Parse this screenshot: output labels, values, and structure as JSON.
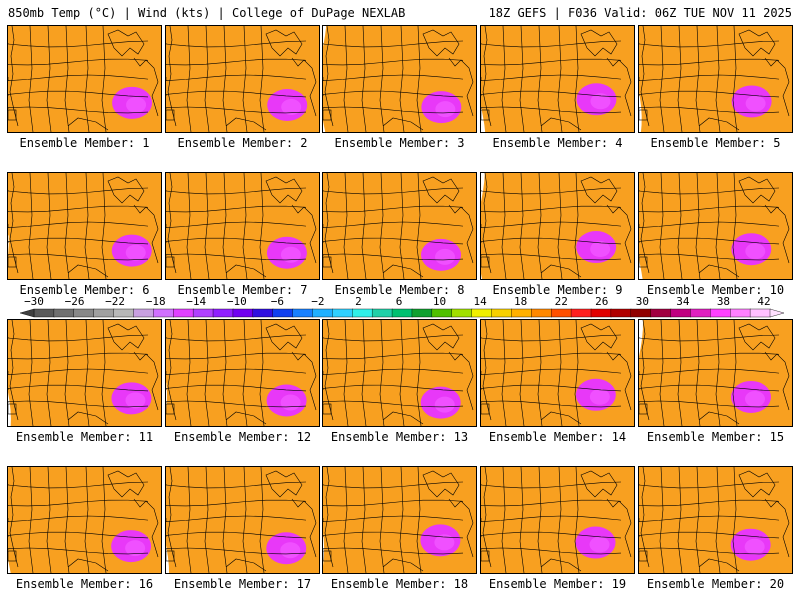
{
  "header": {
    "left": "850mb Temp (°C) | Wind (kts) | College of DuPage NEXLAB",
    "right": "18Z GEFS | F036 Valid: 06Z TUE NOV 11 2025"
  },
  "member_prefix": "Ensemble Member: ",
  "members": [
    "1",
    "2",
    "3",
    "4",
    "5",
    "6",
    "7",
    "8",
    "9",
    "10",
    "11",
    "12",
    "13",
    "14",
    "15",
    "16",
    "17",
    "18",
    "19",
    "20"
  ],
  "colorbar": {
    "labels": [
      "−30",
      "−26",
      "−22",
      "−18",
      "−14",
      "−10",
      "−6",
      "−2",
      "2",
      "6",
      "10",
      "14",
      "18",
      "22",
      "26",
      "30",
      "34",
      "38",
      "42"
    ],
    "colors": [
      "#5a5a5a",
      "#707070",
      "#888888",
      "#a0a0a0",
      "#b8b8b8",
      "#c8a0e0",
      "#d070ff",
      "#e040ff",
      "#b040ff",
      "#9020ff",
      "#7000f0",
      "#3010e0",
      "#1040f0",
      "#1880ff",
      "#20b0ff",
      "#30d0ff",
      "#30f0e8",
      "#20d0a8",
      "#00c070",
      "#10a030",
      "#50c000",
      "#a0e000",
      "#f0f000",
      "#f8d000",
      "#ffb000",
      "#ff8800",
      "#ff5000",
      "#ff2020",
      "#e00000",
      "#b00000",
      "#900000",
      "#a00040",
      "#c00080",
      "#e020c0",
      "#ff40ff",
      "#ff80ff",
      "#ffc0ff"
    ]
  }
}
